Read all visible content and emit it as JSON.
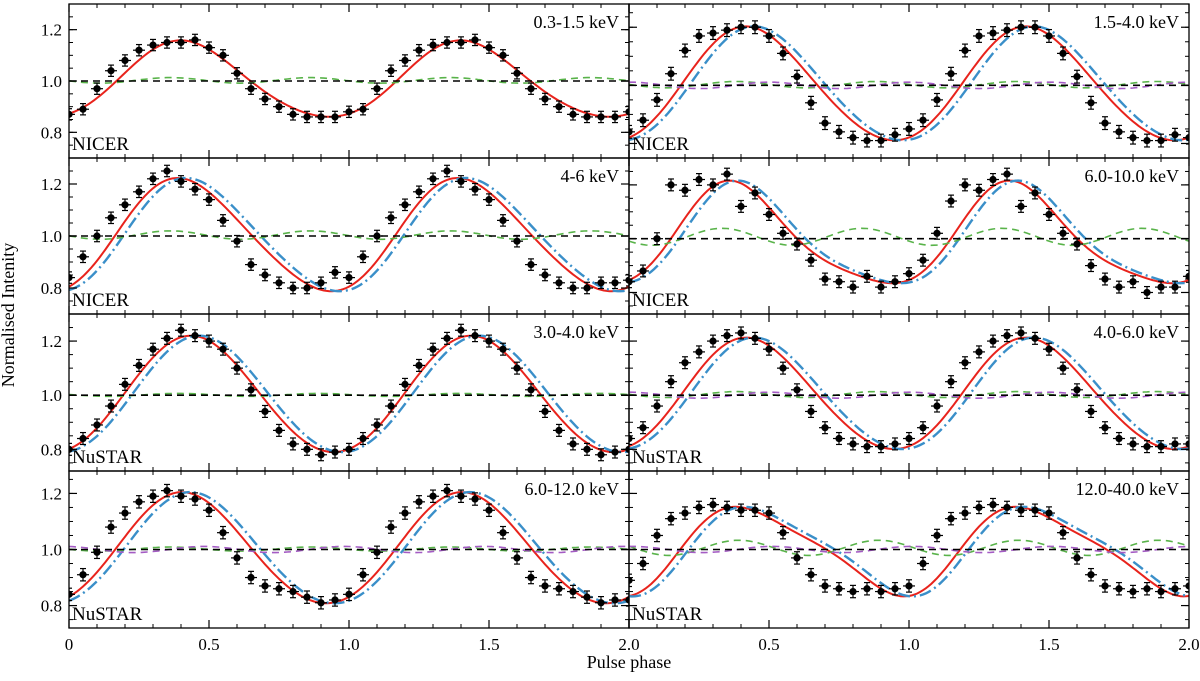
{
  "figure": {
    "xlabel": "Pulse phase",
    "ylabel": "Normalised Intenity"
  },
  "colors": {
    "data_points": "#000000",
    "model_red": "#e8231c",
    "model_blue": "#3a8fc9",
    "model_green": "#59b34a",
    "model_purple": "#a45bc4",
    "reference_line": "#000000"
  },
  "chart_data": [
    {
      "type": "line",
      "instrument": "NICER",
      "energy": "0.3-1.5 keV",
      "xlim": [
        0,
        2
      ],
      "ylim": [
        0.7,
        1.3
      ],
      "yticks": [
        "0.8",
        "1.0",
        "1.2"
      ],
      "xticks": [
        "0",
        "0.5",
        "1.0",
        "1.5",
        "2.0"
      ],
      "profile": {
        "mean": 1.0,
        "amp1": 0.148,
        "peak": 0.41,
        "amp2": 0.012,
        "phase2": 0.1
      },
      "series": [
        {
          "style": "points",
          "x": [
            0.0,
            0.05,
            0.1,
            0.15,
            0.2,
            0.25,
            0.3,
            0.35,
            0.4,
            0.45,
            0.5,
            0.55,
            0.6,
            0.65,
            0.7,
            0.75,
            0.8,
            0.85,
            0.9,
            0.95,
            1.0,
            1.05,
            1.1,
            1.15,
            1.2,
            1.25,
            1.3,
            1.35,
            1.4,
            1.45,
            1.5,
            1.55,
            1.6,
            1.65,
            1.7,
            1.75,
            1.8,
            1.85,
            1.9,
            1.95,
            2.0
          ],
          "y": [
            0.87,
            0.89,
            0.97,
            1.04,
            1.08,
            1.12,
            1.14,
            1.15,
            1.15,
            1.16,
            1.13,
            1.1,
            1.03,
            0.97,
            0.93,
            0.9,
            0.87,
            0.86,
            0.86,
            0.86,
            0.88,
            0.89,
            0.97,
            1.04,
            1.08,
            1.12,
            1.14,
            1.15,
            1.15,
            1.16,
            1.13,
            1.1,
            1.03,
            0.97,
            0.93,
            0.9,
            0.87,
            0.86,
            0.86,
            0.86,
            0.88
          ]
        },
        {
          "style": "red-solid"
        },
        {
          "style": "green-dashed"
        },
        {
          "style": "black-dashed",
          "y": 1.0
        }
      ]
    },
    {
      "type": "line",
      "instrument": "NICER",
      "energy": "1.5-4.0 keV",
      "xlim": [
        0,
        2
      ],
      "ylim": [
        0.75,
        1.28
      ],
      "yticks": [
        "0.8",
        "1.0",
        "1.2"
      ],
      "xticks": [
        "0",
        "0.5",
        "1.0",
        "1.5",
        "2.0"
      ],
      "profile": {
        "mean": 1.0,
        "amp1": 0.195,
        "peak": 0.43,
        "amp2": 0.012,
        "phase2": 0.15
      },
      "series": [
        {
          "style": "points",
          "x": [
            0.0,
            0.05,
            0.1,
            0.15,
            0.2,
            0.25,
            0.3,
            0.35,
            0.4,
            0.45,
            0.5,
            0.55,
            0.6,
            0.65,
            0.7,
            0.75,
            0.8,
            0.85,
            0.9,
            0.95,
            1.0,
            1.05,
            1.1,
            1.15,
            1.2,
            1.25,
            1.3,
            1.35,
            1.4,
            1.45,
            1.5,
            1.55,
            1.6,
            1.65,
            1.7,
            1.75,
            1.8,
            1.85,
            1.9,
            1.95,
            2.0
          ],
          "y": [
            0.84,
            0.88,
            0.95,
            1.04,
            1.12,
            1.17,
            1.18,
            1.19,
            1.2,
            1.2,
            1.17,
            1.11,
            1.03,
            0.94,
            0.87,
            0.84,
            0.82,
            0.81,
            0.81,
            0.83,
            0.85,
            0.88,
            0.95,
            1.04,
            1.12,
            1.17,
            1.18,
            1.19,
            1.2,
            1.2,
            1.17,
            1.11,
            1.03,
            0.94,
            0.87,
            0.84,
            0.82,
            0.81,
            0.81,
            0.83,
            0.82
          ]
        },
        {
          "style": "red-solid"
        },
        {
          "style": "blue-dashdot"
        },
        {
          "style": "green-dashed"
        },
        {
          "style": "purple-dashed"
        },
        {
          "style": "black-dashed",
          "y": 1.0
        }
      ]
    },
    {
      "type": "line",
      "instrument": "NICER",
      "energy": "4-6 keV",
      "xlim": [
        0,
        2
      ],
      "ylim": [
        0.7,
        1.3
      ],
      "yticks": [
        "0.8",
        "1.0",
        "1.2"
      ],
      "xticks": [
        "0",
        "0.5",
        "1.0",
        "1.5",
        "2.0"
      ],
      "profile": {
        "mean": 1.0,
        "amp1": 0.215,
        "peak": 0.41,
        "amp2": 0.018,
        "phase2": 0.2
      },
      "series": [
        {
          "style": "points",
          "x": [
            0.0,
            0.05,
            0.1,
            0.15,
            0.2,
            0.25,
            0.3,
            0.35,
            0.4,
            0.45,
            0.5,
            0.55,
            0.6,
            0.65,
            0.7,
            0.75,
            0.8,
            0.85,
            0.9,
            0.95,
            1.0,
            1.05,
            1.1,
            1.15,
            1.2,
            1.25,
            1.3,
            1.35,
            1.4,
            1.45,
            1.5,
            1.55,
            1.6,
            1.65,
            1.7,
            1.75,
            1.8,
            1.85,
            1.9,
            1.95,
            2.0
          ],
          "y": [
            0.84,
            0.92,
            1.0,
            1.07,
            1.12,
            1.17,
            1.22,
            1.25,
            1.21,
            1.18,
            1.14,
            1.06,
            0.98,
            0.89,
            0.85,
            0.82,
            0.8,
            0.8,
            0.82,
            0.86,
            0.84,
            0.92,
            1.0,
            1.07,
            1.12,
            1.17,
            1.22,
            1.25,
            1.21,
            1.18,
            1.14,
            1.06,
            0.98,
            0.89,
            0.85,
            0.82,
            0.8,
            0.8,
            0.82,
            0.82,
            0.83
          ]
        },
        {
          "style": "red-solid"
        },
        {
          "style": "blue-dashdot"
        },
        {
          "style": "green-dashed"
        },
        {
          "style": "black-dashed",
          "y": 1.0
        }
      ]
    },
    {
      "type": "line",
      "instrument": "NICER",
      "energy": "6.0-10.0 keV",
      "xlim": [
        0,
        2
      ],
      "ylim": [
        0.72,
        1.3
      ],
      "yticks": [
        "0.8",
        "1.0",
        "1.2"
      ],
      "xticks": [
        "0",
        "0.5",
        "1.0",
        "1.5",
        "2.0"
      ],
      "profile": {
        "mean": 1.0,
        "amp1": 0.185,
        "peak": 0.38,
        "amp2": 0.035,
        "phase2": 0.1
      },
      "series": [
        {
          "style": "points",
          "x": [
            0.0,
            0.05,
            0.1,
            0.15,
            0.2,
            0.25,
            0.3,
            0.35,
            0.4,
            0.45,
            0.5,
            0.55,
            0.6,
            0.65,
            0.7,
            0.75,
            0.8,
            0.85,
            0.9,
            0.95,
            1.0,
            1.05,
            1.1,
            1.15,
            1.2,
            1.25,
            1.3,
            1.35,
            1.4,
            1.45,
            1.5,
            1.55,
            1.6,
            1.65,
            1.7,
            1.75,
            1.8,
            1.85,
            1.9,
            1.95,
            2.0
          ],
          "y": [
            0.84,
            0.88,
            1.0,
            1.2,
            1.18,
            1.22,
            1.2,
            1.24,
            1.12,
            1.17,
            1.09,
            1.02,
            0.98,
            0.92,
            0.85,
            0.84,
            0.82,
            0.86,
            0.82,
            0.84,
            0.87,
            0.92,
            1.02,
            1.14,
            1.2,
            1.18,
            1.22,
            1.24,
            1.12,
            1.17,
            1.09,
            1.02,
            0.98,
            0.9,
            0.85,
            0.82,
            0.84,
            0.8,
            0.82,
            0.82,
            0.86
          ]
        },
        {
          "style": "red-solid"
        },
        {
          "style": "blue-dashdot"
        },
        {
          "style": "green-dashed"
        },
        {
          "style": "black-dashed",
          "y": 1.0
        }
      ]
    },
    {
      "type": "line",
      "instrument": "NuSTAR",
      "energy": "3.0-4.0 keV",
      "xlim": [
        0,
        2
      ],
      "ylim": [
        0.72,
        1.3
      ],
      "yticks": [
        "0.8",
        "1.0",
        "1.2"
      ],
      "xticks": [
        "0",
        "0.5",
        "1.0",
        "1.5",
        "2.0"
      ],
      "profile": {
        "mean": 1.0,
        "amp1": 0.215,
        "peak": 0.44,
        "amp2": 0.006,
        "phase2": 0.1
      },
      "series": [
        {
          "style": "points",
          "x": [
            0.0,
            0.05,
            0.1,
            0.15,
            0.2,
            0.25,
            0.3,
            0.35,
            0.4,
            0.45,
            0.5,
            0.55,
            0.6,
            0.65,
            0.7,
            0.75,
            0.8,
            0.85,
            0.9,
            0.95,
            1.0,
            1.05,
            1.1,
            1.15,
            1.2,
            1.25,
            1.3,
            1.35,
            1.4,
            1.45,
            1.5,
            1.55,
            1.6,
            1.65,
            1.7,
            1.75,
            1.8,
            1.85,
            1.9,
            1.95,
            2.0
          ],
          "y": [
            0.8,
            0.84,
            0.89,
            0.96,
            1.04,
            1.11,
            1.17,
            1.21,
            1.24,
            1.22,
            1.2,
            1.17,
            1.1,
            1.02,
            0.94,
            0.87,
            0.82,
            0.8,
            0.78,
            0.79,
            0.8,
            0.84,
            0.89,
            0.96,
            1.04,
            1.11,
            1.17,
            1.21,
            1.24,
            1.22,
            1.2,
            1.17,
            1.1,
            1.02,
            0.94,
            0.87,
            0.82,
            0.8,
            0.78,
            0.79,
            0.8
          ]
        },
        {
          "style": "red-solid"
        },
        {
          "style": "blue-dashdot"
        },
        {
          "style": "green-dashed"
        },
        {
          "style": "black-dashed",
          "y": 1.0
        }
      ]
    },
    {
      "type": "line",
      "instrument": "NuSTAR",
      "energy": "4.0-6.0 keV",
      "xlim": [
        0,
        2
      ],
      "ylim": [
        0.72,
        1.3
      ],
      "yticks": [
        "0.8",
        "1.0",
        "1.2"
      ],
      "xticks": [
        "0",
        "0.5",
        "1.0",
        "1.5",
        "2.0"
      ],
      "profile": {
        "mean": 1.0,
        "amp1": 0.205,
        "peak": 0.43,
        "amp2": 0.012,
        "phase2": 0.15
      },
      "series": [
        {
          "style": "points",
          "x": [
            0.0,
            0.05,
            0.1,
            0.15,
            0.2,
            0.25,
            0.3,
            0.35,
            0.4,
            0.45,
            0.5,
            0.55,
            0.6,
            0.65,
            0.7,
            0.75,
            0.8,
            0.85,
            0.9,
            0.95,
            1.0,
            1.05,
            1.1,
            1.15,
            1.2,
            1.25,
            1.3,
            1.35,
            1.4,
            1.45,
            1.5,
            1.55,
            1.6,
            1.65,
            1.7,
            1.75,
            1.8,
            1.85,
            1.9,
            1.95,
            2.0
          ],
          "y": [
            0.84,
            0.88,
            0.96,
            1.05,
            1.12,
            1.16,
            1.2,
            1.22,
            1.23,
            1.21,
            1.17,
            1.1,
            1.02,
            0.94,
            0.88,
            0.84,
            0.82,
            0.81,
            0.81,
            0.82,
            0.84,
            0.88,
            0.96,
            1.05,
            1.12,
            1.16,
            1.2,
            1.22,
            1.23,
            1.21,
            1.17,
            1.1,
            1.02,
            0.94,
            0.88,
            0.84,
            0.82,
            0.81,
            0.81,
            0.82,
            0.82
          ]
        },
        {
          "style": "red-solid"
        },
        {
          "style": "blue-dashdot"
        },
        {
          "style": "green-dashed"
        },
        {
          "style": "purple-dashed"
        },
        {
          "style": "black-dashed",
          "y": 1.0
        }
      ]
    },
    {
      "type": "line",
      "instrument": "NuSTAR",
      "energy": "6.0-12.0 keV",
      "xlim": [
        0,
        2
      ],
      "ylim": [
        0.72,
        1.28
      ],
      "yticks": [
        "0.8",
        "1.0",
        "1.2"
      ],
      "xticks": [
        "0",
        "0.5",
        "1.0",
        "1.5",
        "2.0"
      ],
      "profile": {
        "mean": 1.0,
        "amp1": 0.198,
        "peak": 0.41,
        "amp2": 0.008,
        "phase2": 0.1
      },
      "series": [
        {
          "style": "points",
          "x": [
            0.0,
            0.05,
            0.1,
            0.15,
            0.2,
            0.25,
            0.3,
            0.35,
            0.4,
            0.45,
            0.5,
            0.55,
            0.6,
            0.65,
            0.7,
            0.75,
            0.8,
            0.85,
            0.9,
            0.95,
            1.0,
            1.05,
            1.1,
            1.15,
            1.2,
            1.25,
            1.3,
            1.35,
            1.4,
            1.45,
            1.5,
            1.55,
            1.6,
            1.65,
            1.7,
            1.75,
            1.8,
            1.85,
            1.9,
            1.95,
            2.0
          ],
          "y": [
            0.84,
            0.91,
            0.99,
            1.08,
            1.13,
            1.17,
            1.19,
            1.21,
            1.19,
            1.18,
            1.14,
            1.06,
            0.97,
            0.9,
            0.87,
            0.86,
            0.85,
            0.83,
            0.81,
            0.82,
            0.84,
            0.91,
            0.99,
            1.08,
            1.13,
            1.17,
            1.19,
            1.21,
            1.19,
            1.18,
            1.14,
            1.06,
            0.97,
            0.9,
            0.87,
            0.86,
            0.85,
            0.83,
            0.81,
            0.82,
            0.82
          ]
        },
        {
          "style": "red-solid"
        },
        {
          "style": "blue-dashdot"
        },
        {
          "style": "green-dashed"
        },
        {
          "style": "purple-dashed"
        },
        {
          "style": "black-dashed",
          "y": 1.0
        }
      ]
    },
    {
      "type": "line",
      "instrument": "NuSTAR",
      "energy": "12.0-40.0 keV",
      "xlim": [
        0,
        2
      ],
      "ylim": [
        0.72,
        1.28
      ],
      "yticks": [
        "0.8",
        "1.0",
        "1.2"
      ],
      "xticks": [
        "0",
        "0.5",
        "1.0",
        "1.5",
        "2.0"
      ],
      "profile": {
        "mean": 1.0,
        "amp1": 0.15,
        "peak": 0.44,
        "amp2": 0.03,
        "phase2": 0.3
      },
      "series": [
        {
          "style": "points",
          "x": [
            0.0,
            0.05,
            0.1,
            0.15,
            0.2,
            0.25,
            0.3,
            0.35,
            0.4,
            0.45,
            0.5,
            0.55,
            0.6,
            0.65,
            0.7,
            0.75,
            0.8,
            0.85,
            0.9,
            0.95,
            1.0,
            1.05,
            1.1,
            1.15,
            1.2,
            1.25,
            1.3,
            1.35,
            1.4,
            1.45,
            1.5,
            1.55,
            1.6,
            1.65,
            1.7,
            1.75,
            1.8,
            1.85,
            1.9,
            1.95,
            2.0
          ],
          "y": [
            0.89,
            0.95,
            1.05,
            1.11,
            1.13,
            1.15,
            1.16,
            1.15,
            1.14,
            1.14,
            1.13,
            1.06,
            0.97,
            0.91,
            0.87,
            0.86,
            0.85,
            0.86,
            0.85,
            0.86,
            0.87,
            0.95,
            1.05,
            1.11,
            1.13,
            1.15,
            1.16,
            1.15,
            1.14,
            1.14,
            1.13,
            1.06,
            0.97,
            0.91,
            0.87,
            0.86,
            0.85,
            0.86,
            0.85,
            0.86,
            0.87
          ]
        },
        {
          "style": "red-solid"
        },
        {
          "style": "blue-dashdot"
        },
        {
          "style": "green-dashed"
        },
        {
          "style": "purple-dashed"
        },
        {
          "style": "black-dashed",
          "y": 1.0
        }
      ]
    }
  ]
}
